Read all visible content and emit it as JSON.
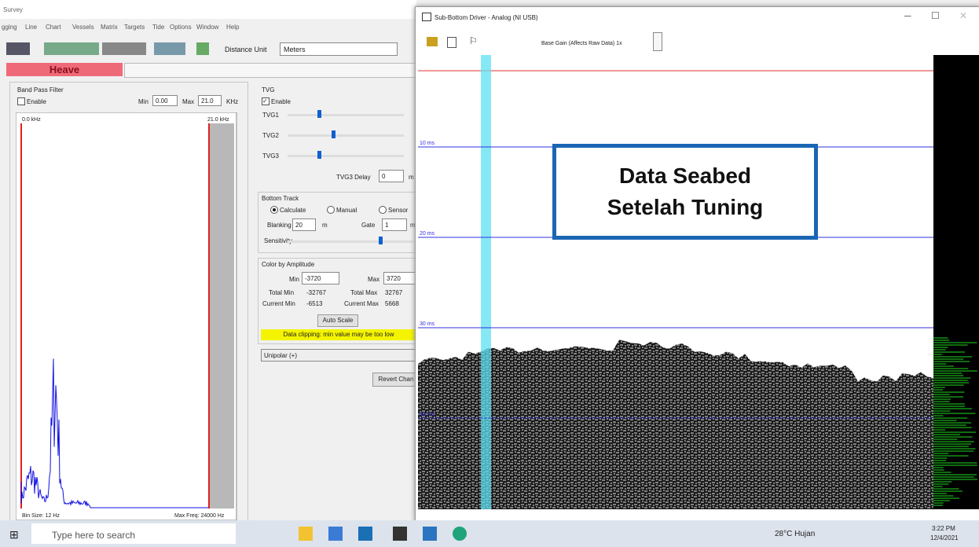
{
  "left_window": {
    "title": "Survey",
    "menu": [
      "gging",
      "Line",
      "Chart",
      "Vessels",
      "Matrix",
      "Targets",
      "Tide",
      "Options",
      "Window",
      "Help"
    ],
    "toolbar": {
      "distance_label": "Distance Unit",
      "distance_value": "Meters"
    },
    "heave": "Heave",
    "band_pass": {
      "title": "Band Pass Filter",
      "enable": "Enable",
      "min_label": "Min",
      "min": "0.00",
      "max_label": "Max",
      "max": "21.0",
      "unit": "KHz",
      "axis_left": "0.0 kHz",
      "axis_right": "21.0 kHz",
      "bin_size": "Bin Size: 12 Hz",
      "max_freq": "Max Freq: 24000 Hz"
    },
    "tvg": {
      "title": "TVG",
      "enable": "Enable",
      "sliders": [
        "TVG1",
        "TVG2",
        "TVG3"
      ],
      "delay_label": "TVG3 Delay",
      "delay": "0",
      "delay_unit": "m"
    },
    "bottom_track": {
      "title": "Bottom Track",
      "options": [
        "Calculate",
        "Manual",
        "Sensor"
      ],
      "blanking_label": "Blanking",
      "blanking": "20",
      "blanking_unit": "m",
      "gate_label": "Gate",
      "gate": "1",
      "gate_unit": "m",
      "sensitivity": "Sensitivity"
    },
    "color_amp": {
      "title": "Color by Amplitude",
      "min_label": "Min",
      "min": "-3720",
      "max_label": "Max",
      "max": "3720",
      "total_min_label": "Total Min",
      "total_min": "-32767",
      "total_max_label": "Total Max",
      "total_max": "32767",
      "current_min_label": "Current Min",
      "current_min": "-6513",
      "current_max_label": "Current Max",
      "current_max": "5668",
      "auto_scale": "Auto Scale",
      "warning": "Data clipping: min value may be too low",
      "mode": "Unipolar (+)",
      "revert": "Revert Chan"
    }
  },
  "right_window": {
    "title": "Sub-Bottom Driver - Analog (NI USB)",
    "gain": "Base Gain (Affects Raw Data) 1x",
    "depths": [
      "10 ms",
      "20 ms",
      "30 ms",
      "40 ms"
    ],
    "annotation": [
      "Data Seabed",
      "Setelah Tuning"
    ]
  },
  "taskbar": {
    "search": "Type here to search",
    "weather": "28°C Hujan",
    "time": "3:22 PM",
    "date": "12/4/2021"
  }
}
